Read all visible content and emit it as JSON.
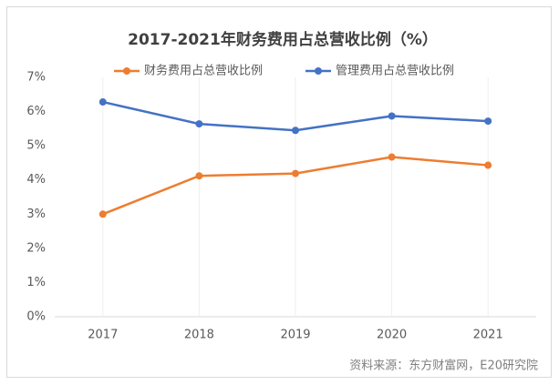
{
  "chart_data": {
    "type": "line",
    "title": "2017-2021年财务费用占总营收比例（%）",
    "categories": [
      "2017",
      "2018",
      "2019",
      "2020",
      "2021"
    ],
    "series": [
      {
        "name": "财务费用占总营收比例",
        "color": "#ed7d31",
        "values": [
          3.0,
          4.12,
          4.19,
          4.67,
          4.43
        ]
      },
      {
        "name": "管理费用占总营收比例",
        "color": "#4472c4",
        "values": [
          6.28,
          5.64,
          5.45,
          5.87,
          5.72
        ]
      }
    ],
    "ylim": [
      0,
      7
    ],
    "yticks": [
      {
        "value": 0,
        "label": "0%"
      },
      {
        "value": 1,
        "label": "1%"
      },
      {
        "value": 2,
        "label": "2%"
      },
      {
        "value": 3,
        "label": "3%"
      },
      {
        "value": 4,
        "label": "4%"
      },
      {
        "value": 5,
        "label": "5%"
      },
      {
        "value": 6,
        "label": "6%"
      },
      {
        "value": 7,
        "label": "7%"
      }
    ],
    "grid": true,
    "legend": "top",
    "source": "资料来源：东方财富网，E20研究院"
  }
}
